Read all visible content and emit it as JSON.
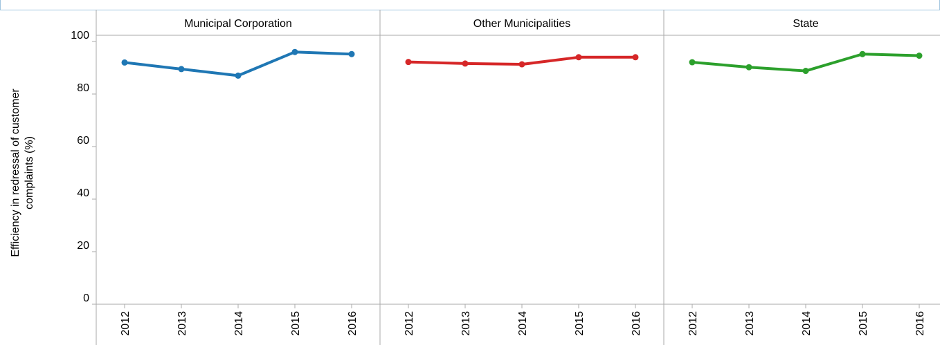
{
  "colors": {
    "Municipal Corporation": "#1f77b4",
    "Other Municipalities": "#d62728",
    "State": "#2ca02c",
    "axis": "#aaaaaa"
  },
  "chart_data": {
    "type": "line",
    "facet_by": "category",
    "facets": [
      "Municipal Corporation",
      "Other Municipalities",
      "State"
    ],
    "x": [
      "2012",
      "2013",
      "2014",
      "2015",
      "2016"
    ],
    "ylabel_lines": [
      "Efficiency in redressal of customer",
      "complaints (%)"
    ],
    "ylim": [
      0,
      100
    ],
    "yticks": [
      0,
      20,
      40,
      60,
      80,
      100
    ],
    "grid": false,
    "series": [
      {
        "facet": "Municipal Corporation",
        "values": [
          92,
          89.5,
          87,
          96,
          95.2
        ]
      },
      {
        "facet": "Other Municipalities",
        "values": [
          92.2,
          91.6,
          91.3,
          94,
          94
        ]
      },
      {
        "facet": "State",
        "values": [
          92.1,
          90.2,
          88.8,
          95.2,
          94.6
        ]
      }
    ]
  }
}
